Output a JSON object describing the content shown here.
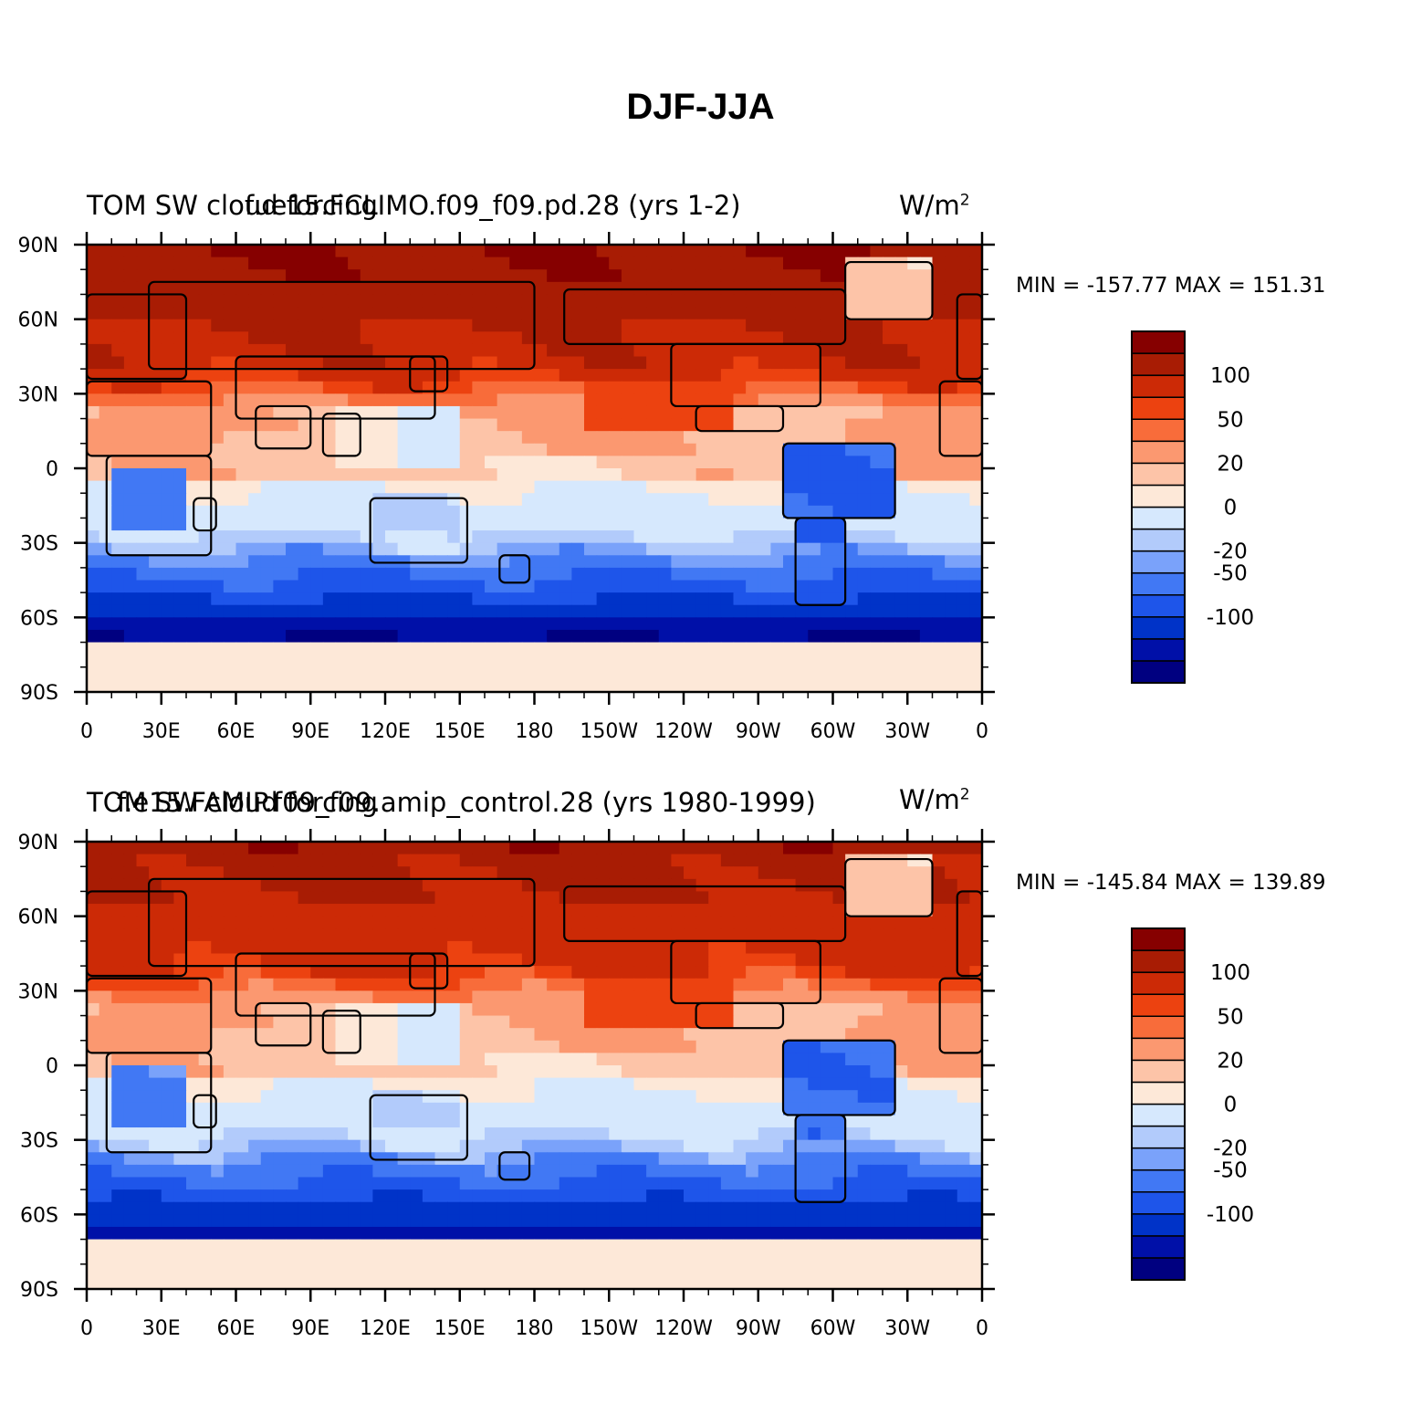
{
  "title": "DJF-JJA",
  "colors": {
    "levels": [
      "#000080",
      "#0010a8",
      "#0033c8",
      "#1e55ea",
      "#4178f4",
      "#7aa2fa",
      "#b2cbfb",
      "#d6e8fd",
      "#fde8d8",
      "#fdc4a8",
      "#fb9870",
      "#f86c3a",
      "#ec4210",
      "#cc2a06",
      "#a81c04",
      "#860000"
    ],
    "contour_ticks": [
      -100,
      -50,
      -20,
      0,
      20,
      50,
      100
    ],
    "land_outline": "#000000"
  },
  "chart_data": [
    {
      "type": "heatmap",
      "left_title": "TOM SW cloud forcing",
      "center_title": "fue15.FCLIMO.f09_f09.pd.28 (yrs 1-2)",
      "units": "W/m",
      "units_sup": "2",
      "min_label": "MIN = -157.77",
      "max_label": "MAX = 151.31",
      "min": -157.77,
      "max": 151.31,
      "x_ticks": [
        "0",
        "30E",
        "60E",
        "90E",
        "120E",
        "150E",
        "180",
        "150W",
        "120W",
        "90W",
        "60W",
        "30W",
        "0"
      ],
      "y_ticks": [
        "90N",
        "60N",
        "30N",
        "0",
        "30S",
        "60S",
        "90S"
      ],
      "colorbar_labels": [
        "100",
        "50",
        "20",
        "0",
        "-20",
        "-50",
        "-100"
      ],
      "xlim": [
        0,
        360
      ],
      "ylim": [
        -90,
        90
      ]
    },
    {
      "type": "heatmap",
      "left_title": "TOM SW cloud forcing",
      "center_title": "f.e15.FAMIP.f09_f09.amip_control.28 (yrs 1980-1999)",
      "units": "W/m",
      "units_sup": "2",
      "min_label": "MIN = -145.84",
      "max_label": "MAX = 139.89",
      "min": -145.84,
      "max": 139.89,
      "x_ticks": [
        "0",
        "30E",
        "60E",
        "90E",
        "120E",
        "150E",
        "180",
        "150W",
        "120W",
        "90W",
        "60W",
        "30W",
        "0"
      ],
      "y_ticks": [
        "90N",
        "60N",
        "30N",
        "0",
        "30S",
        "60S",
        "90S"
      ],
      "colorbar_labels": [
        "100",
        "50",
        "20",
        "0",
        "-20",
        "-50",
        "-100"
      ],
      "xlim": [
        0,
        360
      ],
      "ylim": [
        -90,
        90
      ]
    }
  ]
}
